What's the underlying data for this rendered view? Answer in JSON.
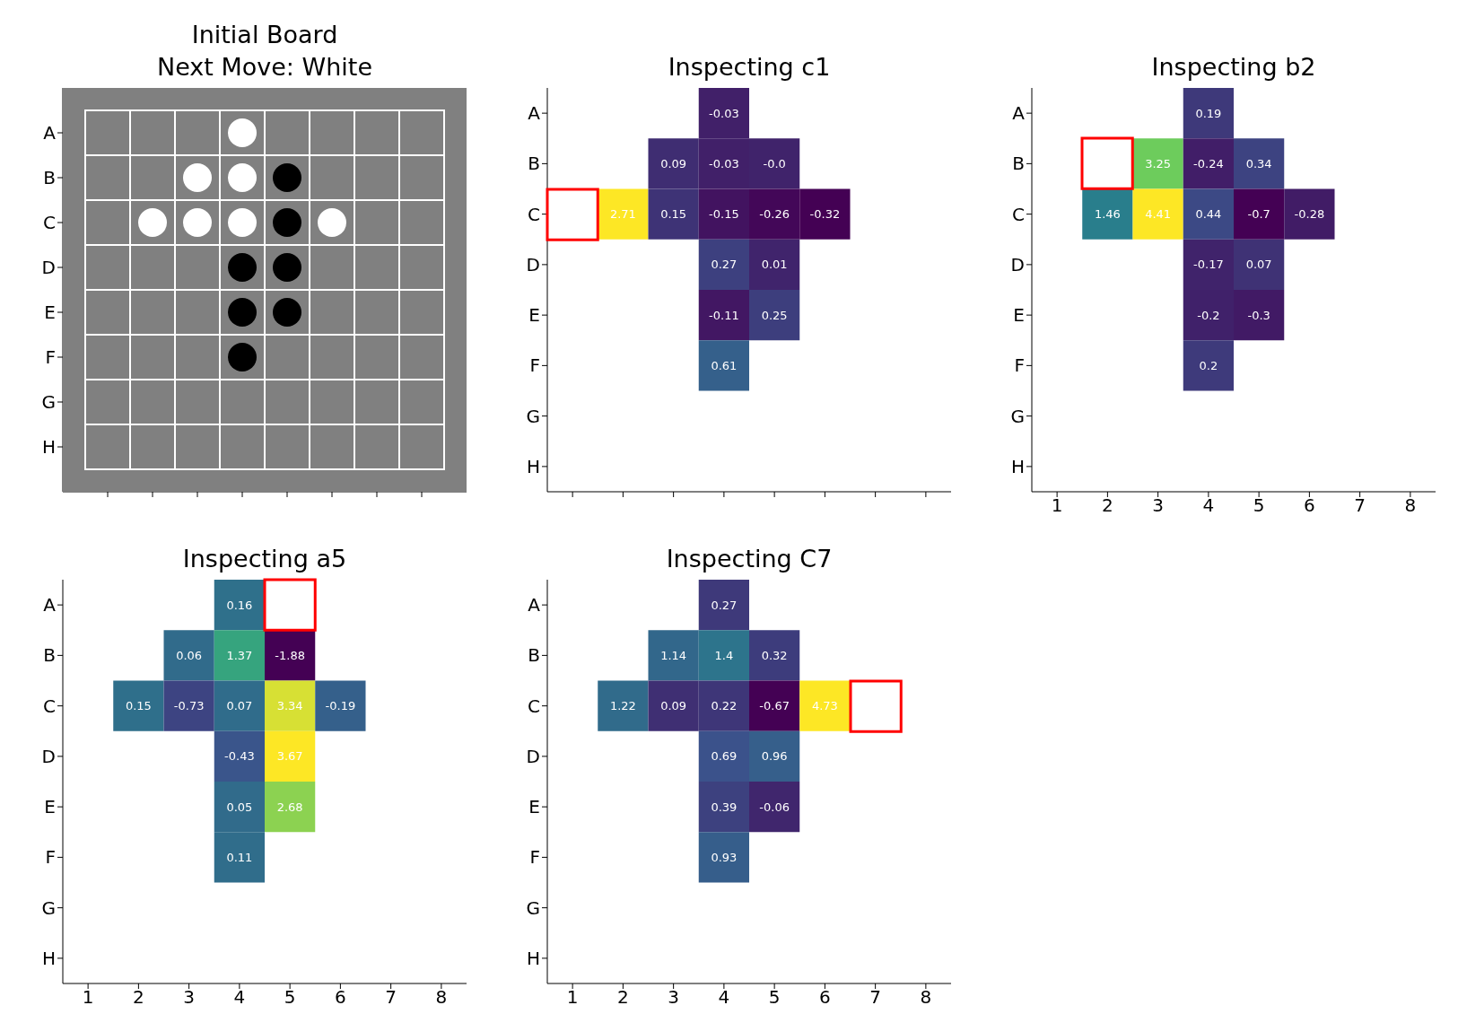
{
  "chart_data": [
    {
      "type": "other",
      "title": "Initial Board\nNext Move: White",
      "categories": [
        null,
        null,
        null,
        null,
        null,
        null,
        null,
        null
      ],
      "y_categories": [
        "A",
        "B",
        "C",
        "D",
        "E",
        "F",
        "G",
        "H"
      ]
    },
    {
      "type": "heatmap",
      "title": "Inspecting c1",
      "categories": [
        null,
        null,
        null,
        null,
        null,
        null,
        null,
        null
      ],
      "y_categories": [
        "A",
        "B",
        "C",
        "D",
        "E",
        "F",
        "G",
        "H"
      ],
      "tick_labels": "y",
      "cells": [
        [
          null,
          null,
          null,
          -0.03,
          null,
          null,
          null,
          null
        ],
        [
          null,
          null,
          0.09,
          -0.03,
          0,
          null,
          null,
          null
        ],
        [
          null,
          2.71,
          0.15,
          -0.15,
          -0.26,
          -0.32,
          null,
          null
        ],
        [
          null,
          null,
          null,
          0.27,
          0.01,
          null,
          null,
          null
        ],
        [
          null,
          null,
          null,
          -0.11,
          0.25,
          null,
          null,
          null
        ],
        [
          null,
          null,
          null,
          0.61,
          null,
          null,
          null,
          null
        ],
        [
          null,
          null,
          null,
          null,
          null,
          null,
          null,
          null
        ],
        [
          null,
          null,
          null,
          null,
          null,
          null,
          null,
          null
        ]
      ],
      "cell_labels": [
        [
          null,
          null,
          null,
          "-0.03",
          null,
          null,
          null,
          null
        ],
        [
          null,
          null,
          "0.09",
          "-0.03",
          "-0.0",
          null,
          null,
          null
        ],
        [
          null,
          "2.71",
          "0.15",
          "-0.15",
          "-0.26",
          "-0.32",
          null,
          null
        ],
        [
          null,
          null,
          null,
          "0.27",
          "0.01",
          null,
          null,
          null
        ],
        [
          null,
          null,
          null,
          "-0.11",
          "0.25",
          null,
          null,
          null
        ],
        [
          null,
          null,
          null,
          "0.61",
          null,
          null,
          null,
          null
        ],
        [
          null,
          null,
          null,
          null,
          null,
          null,
          null,
          null
        ],
        [
          null,
          null,
          null,
          null,
          null,
          null,
          null,
          null
        ]
      ]
    },
    {
      "type": "heatmap",
      "title": "Inspecting b2",
      "categories": [
        "1",
        "2",
        "3",
        "4",
        "5",
        "6",
        "7",
        "8"
      ],
      "y_categories": [
        "A",
        "B",
        "C",
        "D",
        "E",
        "F",
        "G",
        "H"
      ],
      "data_labels": true,
      "cells": [
        [
          null,
          null,
          null,
          0.19,
          null,
          null,
          null,
          null
        ],
        [
          null,
          null,
          3.25,
          -0.24,
          0.34,
          null,
          null,
          null
        ],
        [
          null,
          1.46,
          4.41,
          0.44,
          -0.7,
          -0.28,
          null,
          null
        ],
        [
          null,
          null,
          null,
          -0.17,
          0.07,
          null,
          null,
          null
        ],
        [
          null,
          null,
          null,
          -0.2,
          -0.3,
          null,
          null,
          null
        ],
        [
          null,
          null,
          null,
          0.2,
          null,
          null,
          null,
          null
        ],
        [
          null,
          null,
          null,
          null,
          null,
          null,
          null,
          null
        ],
        [
          null,
          null,
          null,
          null,
          null,
          null,
          null,
          null
        ]
      ]
    },
    {
      "type": "heatmap",
      "title": "Inspecting a5",
      "categories": [
        "1",
        "2",
        "3",
        "4",
        "5",
        "6",
        "7",
        "8"
      ],
      "y_categories": [
        "A",
        "B",
        "C",
        "D",
        "E",
        "F",
        "G",
        "H"
      ],
      "data_labels": true,
      "cells": [
        [
          null,
          null,
          null,
          0.16,
          null,
          null,
          null,
          null
        ],
        [
          null,
          null,
          0.06,
          1.37,
          -1.88,
          null,
          null,
          null
        ],
        [
          null,
          0.15,
          -0.73,
          0.07,
          3.34,
          -0.19,
          null,
          null
        ],
        [
          null,
          null,
          null,
          -0.43,
          3.67,
          null,
          null,
          null
        ],
        [
          null,
          null,
          null,
          0.05,
          2.68,
          null,
          null,
          null
        ],
        [
          null,
          null,
          null,
          0.11,
          null,
          null,
          null,
          null
        ],
        [
          null,
          null,
          null,
          null,
          null,
          null,
          null,
          null
        ],
        [
          null,
          null,
          null,
          null,
          null,
          null,
          null,
          null
        ]
      ]
    },
    {
      "type": "heatmap",
      "title": "Inspecting C7",
      "categories": [
        "1",
        "2",
        "3",
        "4",
        "5",
        "6",
        "7",
        "8"
      ],
      "y_categories": [
        "A",
        "B",
        "C",
        "D",
        "E",
        "F",
        "G",
        "H"
      ],
      "data_labels": true,
      "cells": [
        [
          null,
          null,
          null,
          0.27,
          null,
          null,
          null,
          null
        ],
        [
          null,
          null,
          1.14,
          1.4,
          0.32,
          null,
          null,
          null
        ],
        [
          null,
          1.22,
          0.09,
          0.22,
          -0.67,
          4.73,
          null,
          null
        ],
        [
          null,
          null,
          null,
          0.69,
          0.96,
          null,
          null,
          null
        ],
        [
          null,
          null,
          null,
          0.39,
          -0.06,
          null,
          null,
          null
        ],
        [
          null,
          null,
          null,
          0.93,
          null,
          null,
          null,
          null
        ],
        [
          null,
          null,
          null,
          null,
          null,
          null,
          null,
          null
        ],
        [
          null,
          null,
          null,
          null,
          null,
          null,
          null,
          null
        ]
      ]
    }
  ]
}
